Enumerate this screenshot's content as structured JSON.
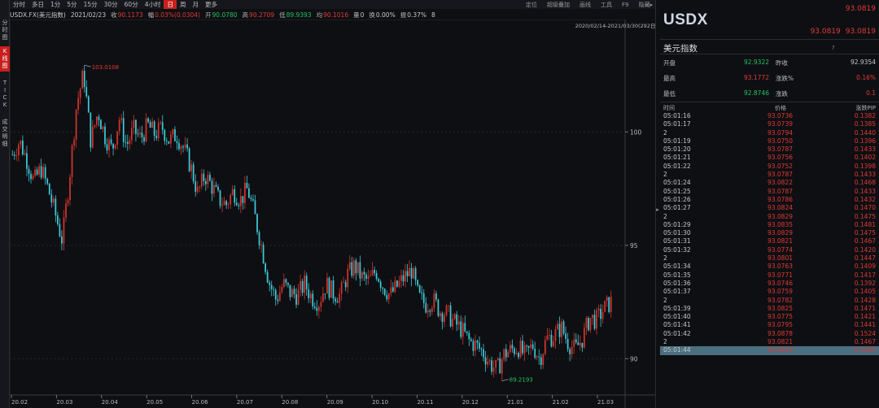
{
  "left_nav": [
    "分时图",
    "K线图",
    "TICK",
    "成交明细"
  ],
  "left_nav_active": 1,
  "toolbar": {
    "periods": [
      "分时",
      "多日",
      "1分",
      "5分",
      "15分",
      "30分",
      "60分",
      "4小时",
      "日",
      "周",
      "月",
      "更多"
    ],
    "active_period": 8,
    "right_items": [
      "定位",
      "超级叠加",
      "画线",
      "工具",
      "F9",
      "隐藏▸"
    ]
  },
  "info": {
    "symbol": "USDX.FX(美元指数)",
    "date": "2021/02/23",
    "close_label": "收",
    "close": "90.1173",
    "change_label": "幅",
    "change": "0.03%(0.0304)",
    "open_label": "开",
    "open": "90.0780",
    "high_label": "高",
    "high": "90.2709",
    "low_label": "低",
    "low": "89.9393",
    "avg_label": "均",
    "avg": "90.1016",
    "vol_label": "量",
    "vol": "0",
    "turnover_label": "换",
    "turnover": "0.00%",
    "amp_label": "振",
    "amp": "0.37%",
    "extra": "8"
  },
  "chart_data": {
    "type": "candlestick",
    "date_range": "2020/02/14-2021/03/30(292日)",
    "x_tick_labels": [
      "20.02",
      "20.03",
      "20.04",
      "20.05",
      "20.06",
      "20.07",
      "20.08",
      "20.09",
      "20.10",
      "20.11",
      "20.12",
      "21.01",
      "21.02",
      "21.03"
    ],
    "y_tick_labels": [
      "100",
      "95",
      "90"
    ],
    "ylim": [
      88.4,
      104.6
    ],
    "high_annotation": "103.0108",
    "low_annotation": "89.2193",
    "path": [
      99.0,
      99.6,
      98.8,
      97.8,
      98.4,
      97.5,
      96.4,
      95.2,
      98.0,
      101.2,
      102.6,
      99.6,
      100.9,
      99.8,
      99.2,
      100.6,
      99.4,
      100.1,
      99.7,
      100.3,
      99.9,
      100.2,
      99.6,
      99.9,
      99.3,
      98.5,
      97.3,
      98.1,
      97.6,
      97.0,
      96.8,
      97.4,
      97.0,
      97.5,
      96.3,
      94.9,
      93.4,
      92.6,
      93.3,
      92.9,
      92.8,
      93.3,
      92.7,
      92.5,
      93.3,
      92.9,
      92.8,
      93.7,
      94.1,
      93.6,
      93.4,
      93.9,
      93.2,
      92.8,
      93.2,
      93.6,
      93.9,
      92.7,
      92.4,
      92.6,
      92.1,
      92.0,
      91.6,
      91.3,
      90.8,
      90.6,
      90.3,
      89.8,
      89.5,
      90.2,
      90.4,
      90.5,
      90.1,
      90.6,
      90.0,
      90.9,
      91.0,
      91.4,
      90.7,
      90.4,
      90.9,
      91.8,
      91.7,
      92.2,
      92.5
    ]
  },
  "quote": {
    "symbol": "USDX",
    "price": "93.0819",
    "bid": "93.0819",
    "ask": "93.0819",
    "name": "美元指数",
    "help": "?",
    "rows": [
      {
        "l1": "开盘",
        "v1": "92.9322",
        "c1": "dn",
        "l2": "昨收",
        "v2": "92.9354",
        "c2": "wt"
      },
      {
        "l1": "最高",
        "v1": "93.1772",
        "c1": "up",
        "l2": "涨跌%",
        "v2": "0.16%",
        "c2": "up"
      },
      {
        "l1": "最低",
        "v1": "92.8746",
        "c1": "dn",
        "l2": "涨跌",
        "v2": "0.1",
        "c2": "up"
      }
    ]
  },
  "ticks_header": {
    "time": "时间",
    "price": "价格",
    "chg": "涨跌PIP"
  },
  "ticks": [
    {
      "t": "05:01:16",
      "p": "93.0736",
      "c": "0.1382"
    },
    {
      "t": "05:01:17",
      "p": "93.0739",
      "c": "0.1385"
    },
    {
      "t": "2",
      "p": "93.0794",
      "c": "0.1440"
    },
    {
      "t": "05:01:19",
      "p": "93.0750",
      "c": "0.1396"
    },
    {
      "t": "05:01:20",
      "p": "93.0787",
      "c": "0.1433"
    },
    {
      "t": "05:01:21",
      "p": "93.0756",
      "c": "0.1402"
    },
    {
      "t": "05:01:22",
      "p": "93.0752",
      "c": "0.1398"
    },
    {
      "t": "2",
      "p": "93.0787",
      "c": "0.1433"
    },
    {
      "t": "05:01:24",
      "p": "93.0822",
      "c": "0.1468"
    },
    {
      "t": "05:01:25",
      "p": "93.0787",
      "c": "0.1433"
    },
    {
      "t": "05:01:26",
      "p": "93.0786",
      "c": "0.1432"
    },
    {
      "t": "05:01:27",
      "p": "93.0824",
      "c": "0.1470"
    },
    {
      "t": "2",
      "p": "93.0829",
      "c": "0.1475"
    },
    {
      "t": "05:01:29",
      "p": "93.0835",
      "c": "0.1481"
    },
    {
      "t": "05:01:30",
      "p": "93.0829",
      "c": "0.1475"
    },
    {
      "t": "05:01:31",
      "p": "93.0821",
      "c": "0.1467"
    },
    {
      "t": "05:01:32",
      "p": "93.0774",
      "c": "0.1420"
    },
    {
      "t": "2",
      "p": "93.0801",
      "c": "0.1447"
    },
    {
      "t": "05:01:34",
      "p": "93.0763",
      "c": "0.1409"
    },
    {
      "t": "05:01:35",
      "p": "93.0771",
      "c": "0.1417"
    },
    {
      "t": "05:01:36",
      "p": "93.0746",
      "c": "0.1392"
    },
    {
      "t": "05:01:37",
      "p": "93.0759",
      "c": "0.1405"
    },
    {
      "t": "2",
      "p": "93.0782",
      "c": "0.1428"
    },
    {
      "t": "05:01:39",
      "p": "93.0825",
      "c": "0.1471"
    },
    {
      "t": "05:01:40",
      "p": "93.0775",
      "c": "0.1421"
    },
    {
      "t": "05:01:41",
      "p": "93.0795",
      "c": "0.1441"
    },
    {
      "t": "05:01:42",
      "p": "93.0878",
      "c": "0.1524"
    },
    {
      "t": "2",
      "p": "93.0821",
      "c": "0.1467"
    },
    {
      "t": "05:01:44",
      "p": "93.0819",
      "c": "0.1465"
    }
  ],
  "selected_tick": 28
}
